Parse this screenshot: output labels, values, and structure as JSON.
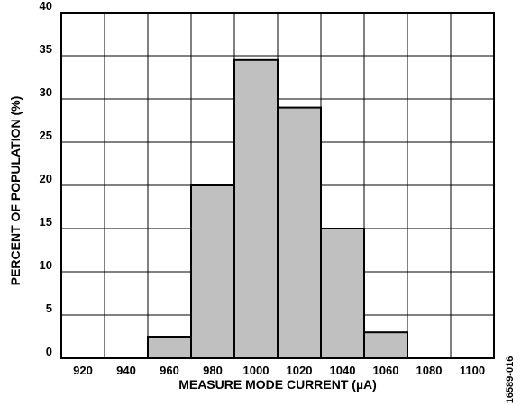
{
  "chart_data": {
    "type": "bar",
    "title": "",
    "xlabel": "MEASURE MODE CURRENT (µA)",
    "ylabel": "PERCENT OF POPULATION (%)",
    "categories": [
      "920",
      "940",
      "960",
      "980",
      "1000",
      "1020",
      "1040",
      "1060",
      "1080",
      "1100"
    ],
    "values": [
      0,
      0,
      2.5,
      20,
      34.5,
      29,
      15,
      3,
      0,
      0
    ],
    "ylim": [
      0,
      40
    ],
    "yticks": [
      0,
      5,
      10,
      15,
      20,
      25,
      30,
      35,
      40
    ],
    "grid": true,
    "bar_color": "#c0c0c0",
    "edge_color": "#000000"
  },
  "figure_id": "16589-016"
}
